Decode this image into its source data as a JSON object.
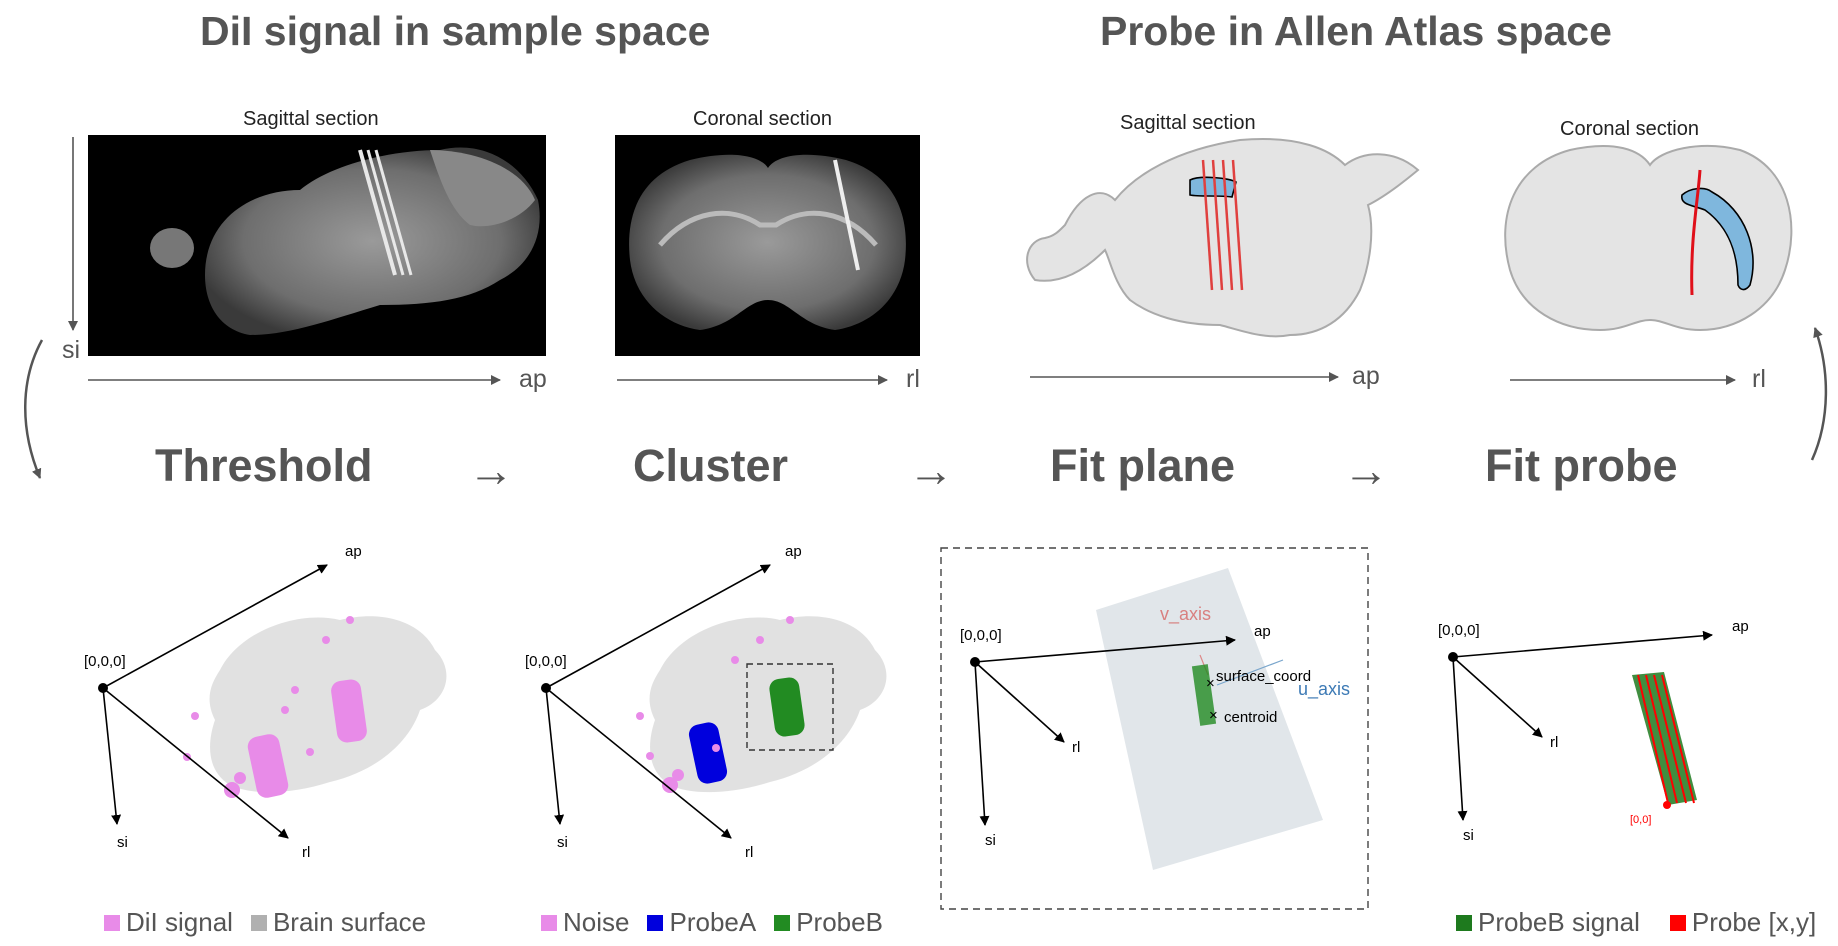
{
  "titles": {
    "left": "DiI signal in sample space",
    "right": "Probe in Allen Atlas space"
  },
  "sections": {
    "sagittal_sample": "Sagittal section",
    "coronal_sample": "Coronal section",
    "sagittal_atlas": "Sagittal section",
    "coronal_atlas": "Coronal section"
  },
  "axes_labels": {
    "si": "si",
    "ap": "ap",
    "rl": "rl"
  },
  "steps": [
    {
      "label": "Threshold"
    },
    {
      "label": "Cluster"
    },
    {
      "label": "Fit plane"
    },
    {
      "label": "Fit probe"
    }
  ],
  "step_arrow": "→",
  "plots": {
    "origin_label": "[0,0,0]",
    "ax_ap": "ap",
    "ax_rl": "rl",
    "ax_si": "si",
    "v_axis": "v_axis",
    "u_axis": "u_axis",
    "surface_coord": "surface_coord",
    "centroid": "centroid",
    "probe_origin": "[0,0]"
  },
  "legends": {
    "threshold": [
      {
        "label": "DiI signal",
        "color": "#e88be8"
      },
      {
        "label": "Brain surface",
        "color": "#b0b0b0"
      }
    ],
    "cluster": [
      {
        "label": "Noise",
        "color": "#e88be8"
      },
      {
        "label": "ProbeA",
        "color": "#0000dd"
      },
      {
        "label": "ProbeB",
        "color": "#228b22"
      }
    ],
    "fitprobe": [
      {
        "label": "ProbeB signal",
        "color": "#1e7a1e"
      },
      {
        "label": "Probe [x,y]",
        "color": "#ff0000"
      }
    ]
  },
  "colors": {
    "dii": "#e88be8",
    "probeA": "#0000dd",
    "probeB": "#228b22",
    "probe_line": "#ff0000",
    "atlas_fill": "#e4e4e4",
    "region": "#7fb7dd"
  }
}
